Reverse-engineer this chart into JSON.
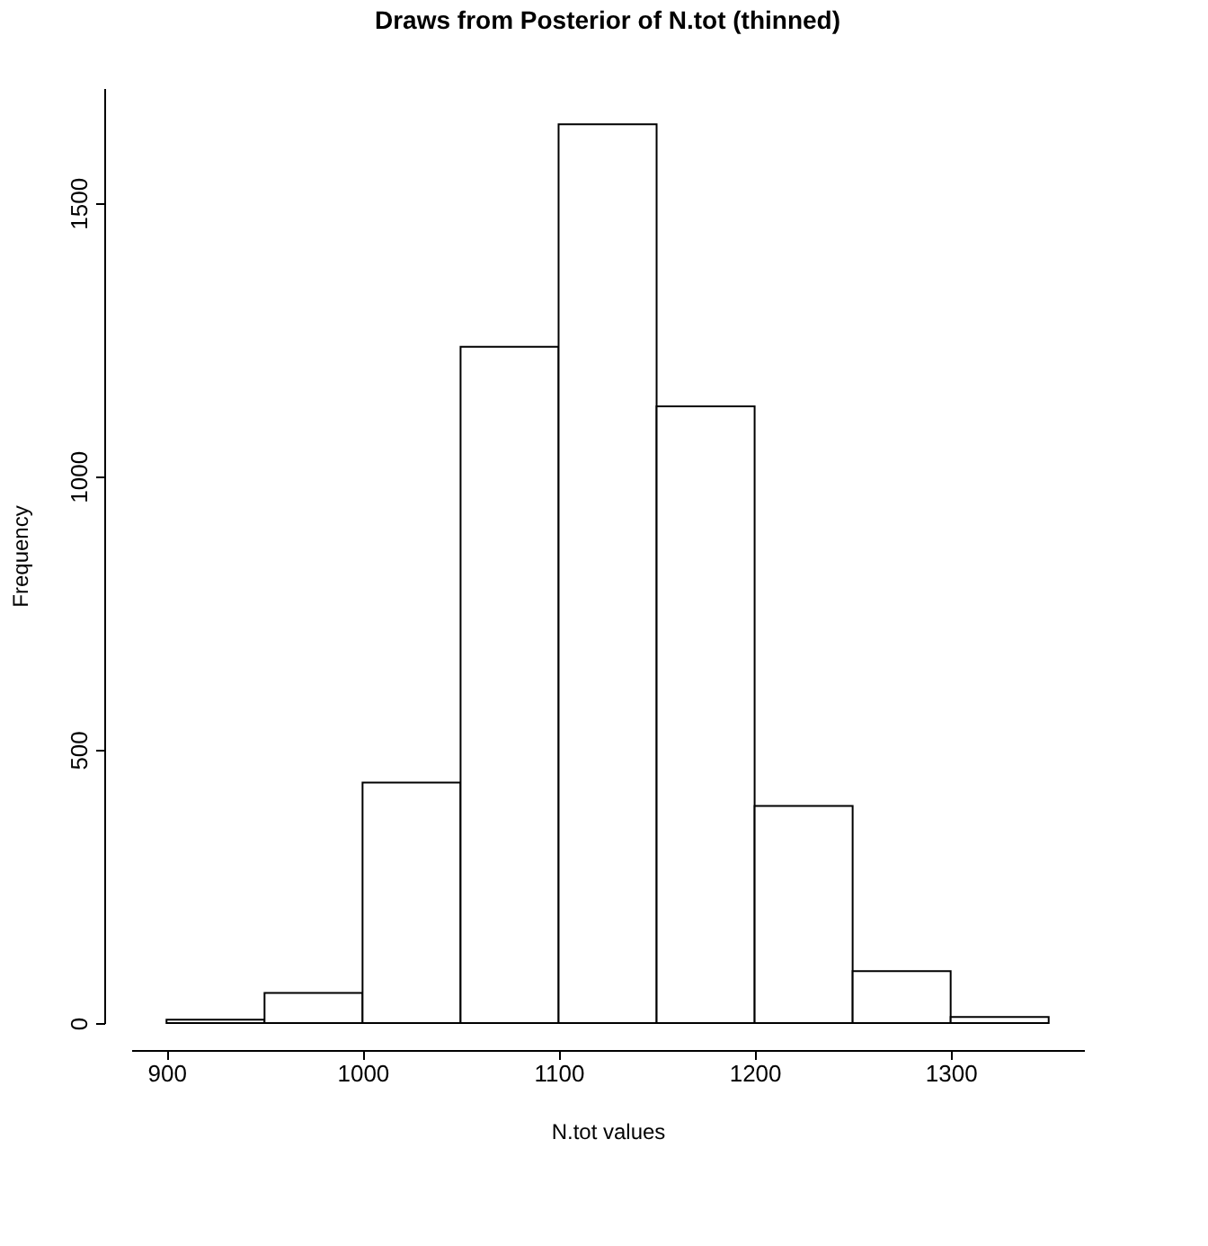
{
  "chart_data": {
    "type": "histogram",
    "title": "Draws from Posterior of N.tot (thinned)",
    "xlabel": "N.tot values",
    "ylabel": "Frequency",
    "bins": [
      900,
      950,
      1000,
      1050,
      1100,
      1150,
      1200,
      1250,
      1300,
      1350
    ],
    "values": [
      6,
      55,
      440,
      1237,
      1644,
      1128,
      397,
      95,
      11
    ],
    "color": "#ffffff",
    "xlim": [
      882,
      1368
    ],
    "xticks": [
      900,
      1000,
      1100,
      1200,
      1300
    ],
    "ylim": [
      0,
      1710
    ],
    "yticks": [
      0,
      500,
      1000,
      1500
    ],
    "grid": false
  }
}
